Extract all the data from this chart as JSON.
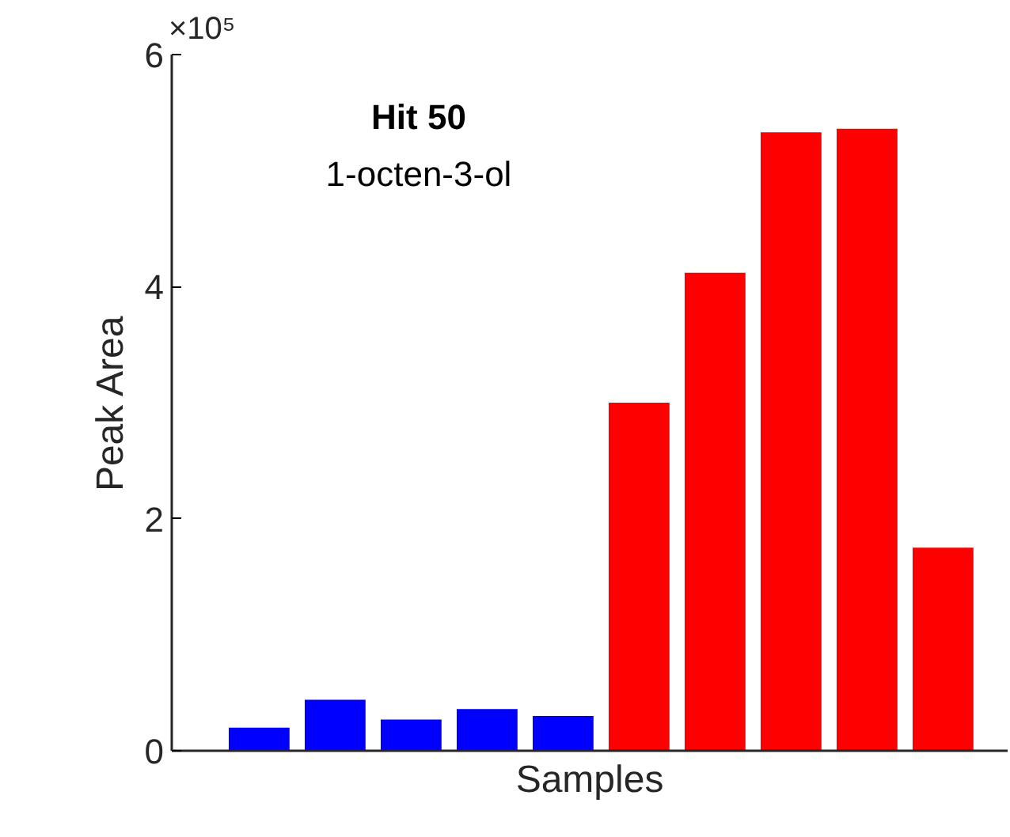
{
  "chart_data": {
    "type": "bar",
    "title": "Hit 50",
    "subtitle": "1-octen-3-ol",
    "xlabel": "Samples",
    "ylabel": "Peak Area",
    "categories": [
      null,
      null,
      null,
      null,
      null,
      null,
      null,
      null,
      null,
      null
    ],
    "values": [
      0.2,
      0.44,
      0.27,
      0.36,
      0.3,
      3.0,
      4.12,
      5.33,
      5.36,
      1.75
    ],
    "colors": [
      "#0000ff",
      "#0000ff",
      "#0000ff",
      "#0000ff",
      "#0000ff",
      "#ff0000",
      "#ff0000",
      "#ff0000",
      "#ff0000",
      "#ff0000"
    ],
    "ylim": [
      0,
      6
    ],
    "yticks": [
      0,
      2,
      4,
      6
    ],
    "annotations": [
      "×10⁵"
    ],
    "grid": false
  }
}
